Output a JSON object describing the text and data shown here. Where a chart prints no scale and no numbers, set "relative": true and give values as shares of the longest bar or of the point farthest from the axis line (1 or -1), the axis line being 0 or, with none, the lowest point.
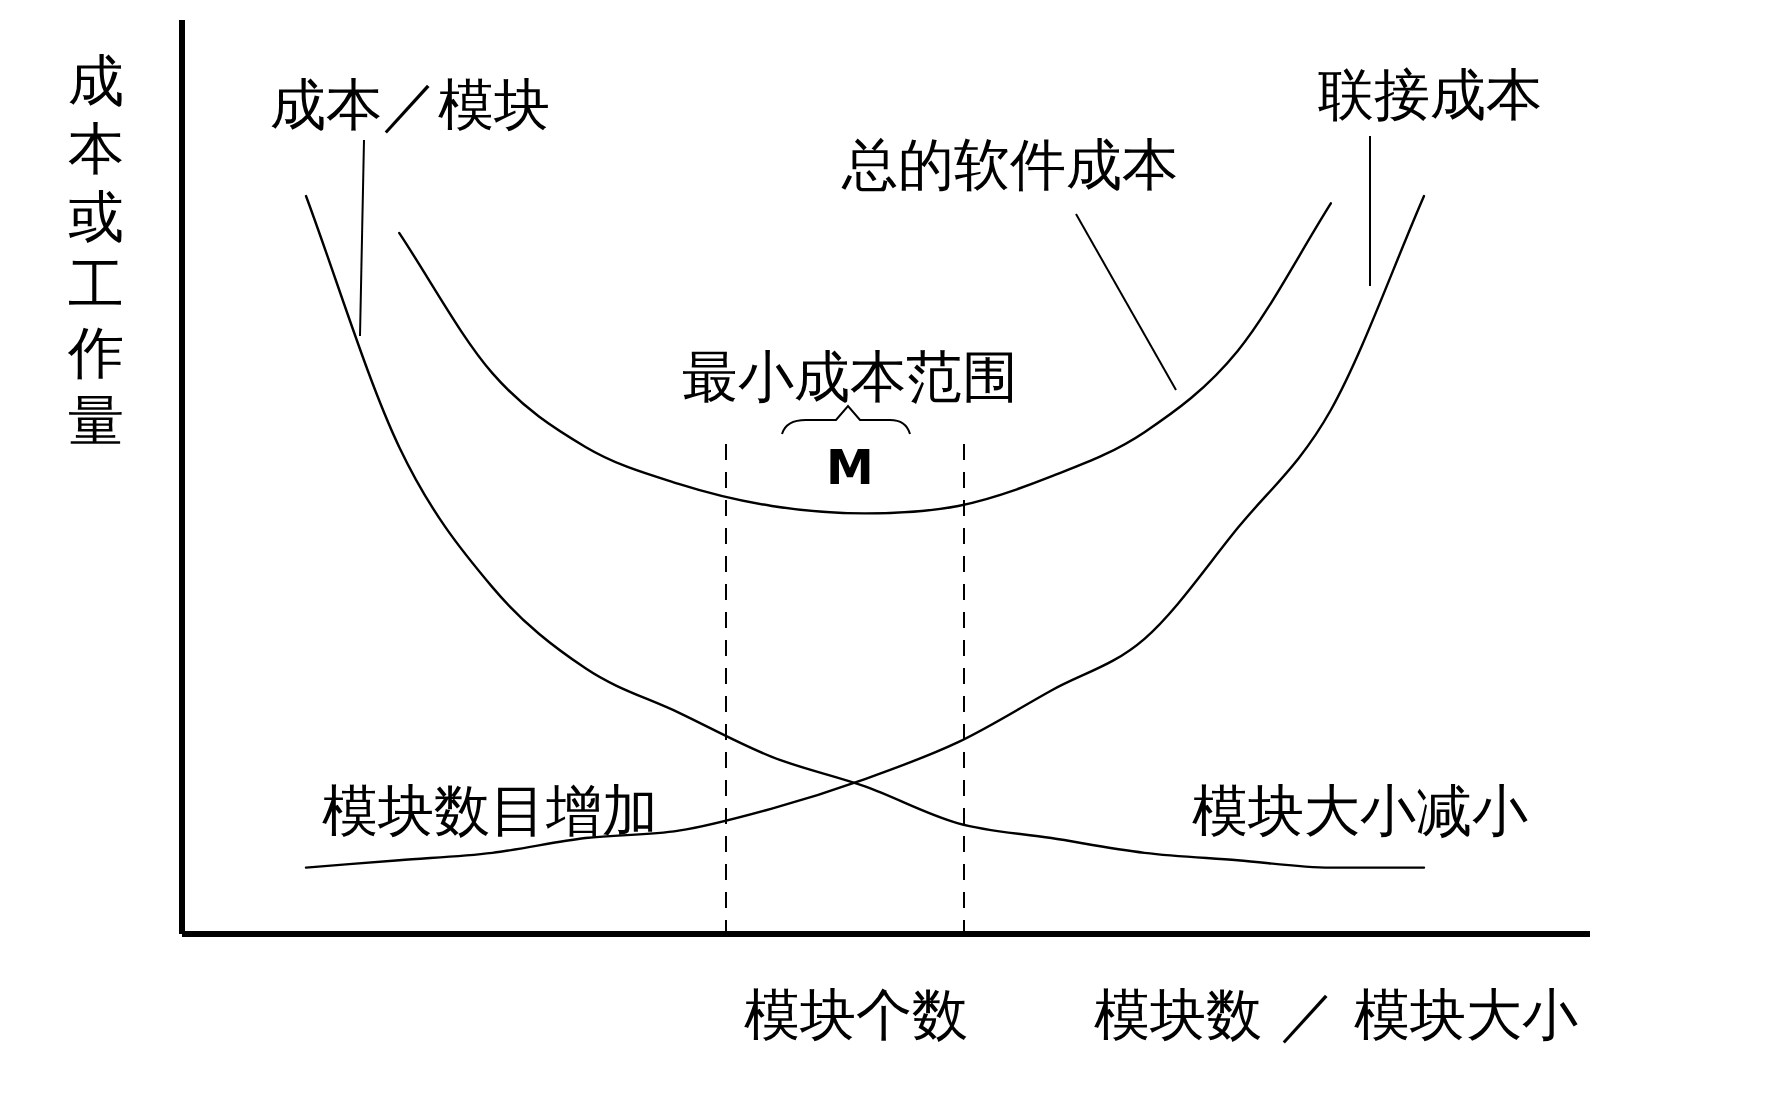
{
  "chart_data": {
    "type": "line",
    "relative": true,
    "xlabel": "模块数 ／ 模块大小",
    "ylabel": "成本或工作量",
    "categories": [
      null,
      null,
      null,
      null,
      null,
      null,
      null,
      null,
      null,
      null,
      null,
      null,
      null
    ],
    "series": [
      {
        "name": "成本／模块",
        "color": "#000000",
        "values": [
          1.0,
          0.66,
          0.47,
          0.36,
          0.3,
          0.24,
          0.2,
          0.15,
          0.13,
          0.11,
          0.1,
          0.09,
          0.09
        ]
      },
      {
        "name": "联接成本",
        "color": "#000000",
        "values": [
          0.09,
          0.1,
          0.11,
          0.13,
          0.14,
          0.17,
          0.21,
          0.26,
          0.33,
          0.4,
          0.55,
          0.71,
          1.0
        ]
      },
      {
        "name": "总的软件成本",
        "color": "#000000",
        "values": [
          null,
          0.95,
          0.76,
          0.66,
          0.61,
          0.58,
          0.57,
          0.58,
          0.62,
          0.68,
          0.79,
          0.99,
          null
        ]
      }
    ],
    "annotations": [
      "最小成本范围",
      "M",
      "模块个数",
      "模块数目增加",
      "模块大小减小"
    ],
    "legend": false,
    "grid": false,
    "marker": "none",
    "line_style": "solid"
  }
}
